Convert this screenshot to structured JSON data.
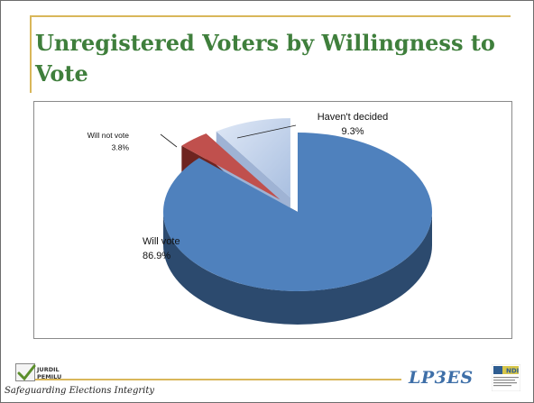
{
  "slide": {
    "title": "Unregistered Voters by Willingness to Vote"
  },
  "footer": {
    "logo_line1": "JURDIL",
    "logo_line2": "PEMILU",
    "tagline": "Safeguarding Elections Integrity",
    "brand": "LP3ES",
    "partner_logo_text": "NDI"
  },
  "colors": {
    "title": "#3f7f3c",
    "rule": "#d9b75a",
    "brand": "#3e6fa8"
  },
  "chart_data": {
    "type": "pie",
    "title": "",
    "style": "3d-exploded",
    "slices": [
      {
        "label": "Will vote",
        "value": 86.9,
        "value_label": "86.9%",
        "color": "#4f81bd",
        "side_color": "#2c4a6e"
      },
      {
        "label": "Will not vote",
        "value": 3.8,
        "value_label": "3.8%",
        "color": "#c0504d",
        "side_color": "#6e2420"
      },
      {
        "label": "Haven't decided",
        "value": 9.3,
        "value_label": "9.3%",
        "color": "#c9d8ee",
        "side_color": "#9fb3d4"
      }
    ]
  }
}
